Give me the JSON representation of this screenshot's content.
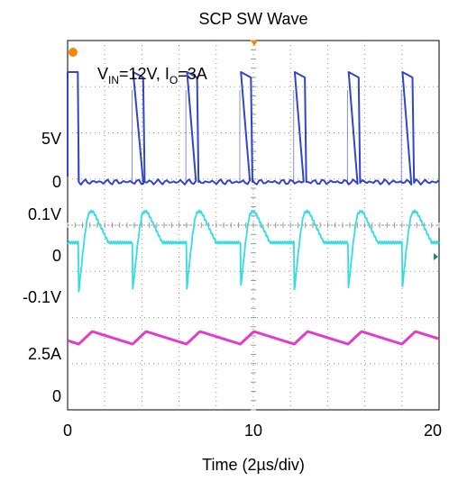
{
  "chart_data": {
    "type": "line",
    "title": "SCP SW Wave",
    "xlabel": "Time (2µs/div)",
    "xlim": [
      0,
      20
    ],
    "x_ticks": [
      "0",
      "10",
      "20"
    ],
    "y_tick_labels": [
      "5V",
      "0",
      "0.1V",
      "0",
      "-0.1V",
      "2.5A",
      "0"
    ],
    "annotation": {
      "v_prefix": "V",
      "v_sub": "IN",
      "v_val": "=12V, ",
      "i_prefix": "I",
      "i_sub": "O",
      "i_val": "=3A"
    },
    "grid": true,
    "background": "oscilloscope",
    "colors": {
      "sw": "#3344cc",
      "inductor_voltage": "#33dde0",
      "current": "#e43cc8",
      "grid": "#9a9a9a",
      "marker": "#f08a00"
    },
    "series": [
      {
        "name": "",
        "unit": "V",
        "period": 2.9,
        "off_time": 0.7,
        "high": 12,
        "low": 0,
        "channel": "sw"
      },
      {
        "name": "",
        "unit": "V",
        "period": 2.9,
        "min": -0.12,
        "max": 0.05,
        "channel": "inductor_voltage"
      },
      {
        "name": "",
        "unit": "A",
        "period": 2.9,
        "min": 2.8,
        "max": 3.3,
        "channel": "current"
      }
    ]
  }
}
